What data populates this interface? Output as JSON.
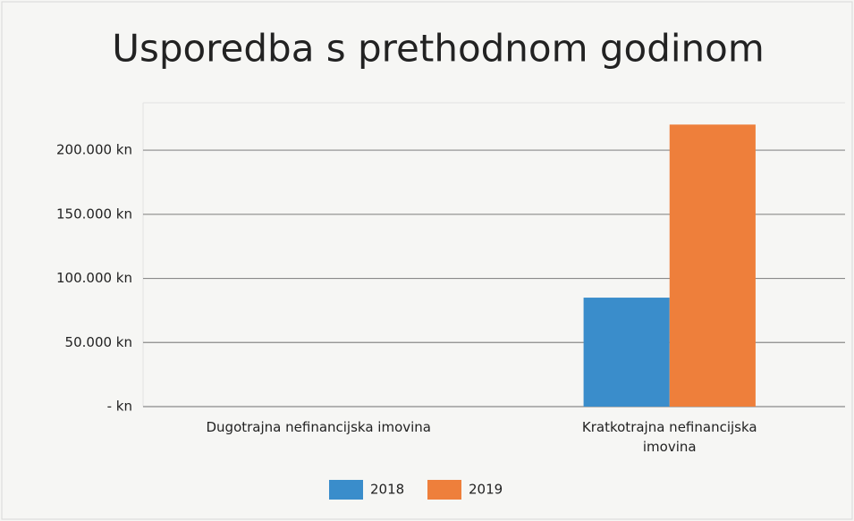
{
  "chart_data": {
    "type": "bar",
    "title": "Usporedba s prethodnom godinom",
    "categories": [
      "Dugotrajna nefinancijska imovina",
      "Kratkotrajna nefinancijska imovina"
    ],
    "series": [
      {
        "name": "2018",
        "color": "#3a8dcb",
        "values": [
          0,
          85000
        ]
      },
      {
        "name": "2019",
        "color": "#ee7f3b",
        "values": [
          0,
          220000
        ]
      }
    ],
    "ylim": [
      0,
      237000
    ],
    "yticks": [
      {
        "value": 0,
        "label": "- kn"
      },
      {
        "value": 50000,
        "label": "50.000 kn"
      },
      {
        "value": 100000,
        "label": "100.000 kn"
      },
      {
        "value": 150000,
        "label": "150.000 kn"
      },
      {
        "value": 200000,
        "label": "200.000 kn"
      }
    ],
    "grid": true,
    "legend": "bottom"
  }
}
